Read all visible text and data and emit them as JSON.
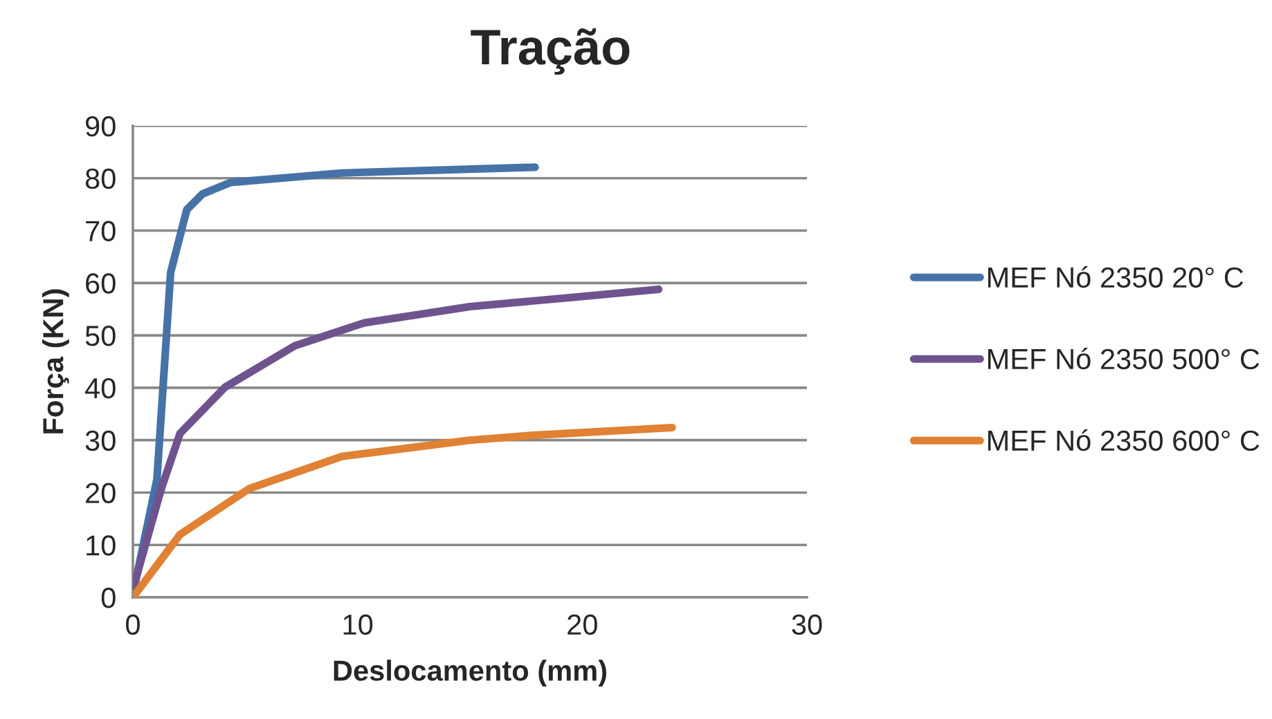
{
  "chart_data": {
    "type": "line",
    "title": "Tração",
    "xlabel": "Deslocamento (mm)",
    "ylabel": "Força (KN)",
    "xlim": [
      0,
      30
    ],
    "xticks": [
      0,
      10,
      20,
      30
    ],
    "ylim": [
      0,
      90
    ],
    "yticks": [
      0,
      10,
      20,
      30,
      40,
      50,
      60,
      70,
      80,
      90
    ],
    "grid": "y",
    "legend": "right",
    "marker": "none",
    "line_style": "solid",
    "series": [
      {
        "name": "MEF Nó 2350 20° C",
        "color": "#4672a8",
        "x": [
          0,
          0.04,
          1.07,
          1.68,
          2.4,
          3.1,
          4.35,
          9.3,
          17.9
        ],
        "values": [
          0,
          1.4,
          22.5,
          62,
          74,
          77,
          79.2,
          81,
          82.1
        ]
      },
      {
        "name": "MEF Nó 2350 500° C",
        "color": "#6f538f",
        "x": [
          0,
          0.05,
          1.27,
          2.1,
          4.1,
          7.2,
          10.3,
          15,
          19.7,
          23.4
        ],
        "values": [
          0,
          2.3,
          20.8,
          31.3,
          40.1,
          48,
          52.4,
          55.5,
          57.3,
          58.8
        ]
      },
      {
        "name": "MEF Nó 2350 600° C",
        "color": "#e08133",
        "x": [
          0,
          2.1,
          5.2,
          9.3,
          15,
          17.7,
          24
        ],
        "values": [
          0,
          12,
          20.8,
          26.9,
          30,
          30.9,
          32.4
        ]
      }
    ]
  }
}
